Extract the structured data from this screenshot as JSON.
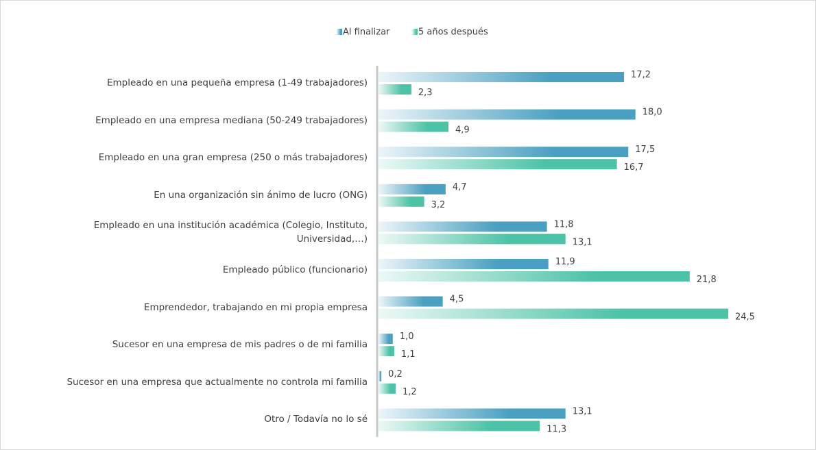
{
  "chart_data": {
    "type": "bar",
    "orientation": "horizontal",
    "categories": [
      "Empleado en una pequeña empresa (1-49 trabajadores)",
      "Empleado en una empresa mediana (50-249 trabajadores)",
      "Empleado en una gran empresa (250 o más trabajadores)",
      "En una organización sin ánimo de lucro (ONG)",
      "Empleado en una institución académica (Colegio, Instituto, Universidad,…)",
      "Empleado público (funcionario)",
      "Emprendedor, trabajando en mi propia empresa",
      "Sucesor en una empresa de mis padres o de mi familia",
      "Sucesor en una empresa que actualmente no controla mi familia",
      "Otro / Todavía no lo sé"
    ],
    "series": [
      {
        "name": "Al finalizar",
        "color": "#4aa0c0",
        "values": [
          17.2,
          18.0,
          17.5,
          4.7,
          11.8,
          11.9,
          4.5,
          1.0,
          0.2,
          13.1
        ],
        "value_labels": [
          "17,2",
          "18,0",
          "17,5",
          "4,7",
          "11,8",
          "11,9",
          "4,5",
          "1,0",
          "0,2",
          "13,1"
        ]
      },
      {
        "name": "5 años después",
        "color": "#4cc2a6",
        "values": [
          2.3,
          4.9,
          16.7,
          3.2,
          13.1,
          21.8,
          24.5,
          1.1,
          1.2,
          11.3
        ],
        "value_labels": [
          "2,3",
          "4,9",
          "16,7",
          "3,2",
          "13,1",
          "21,8",
          "24,5",
          "1,1",
          "1,2",
          "11,3"
        ]
      }
    ],
    "legend": "top"
  }
}
